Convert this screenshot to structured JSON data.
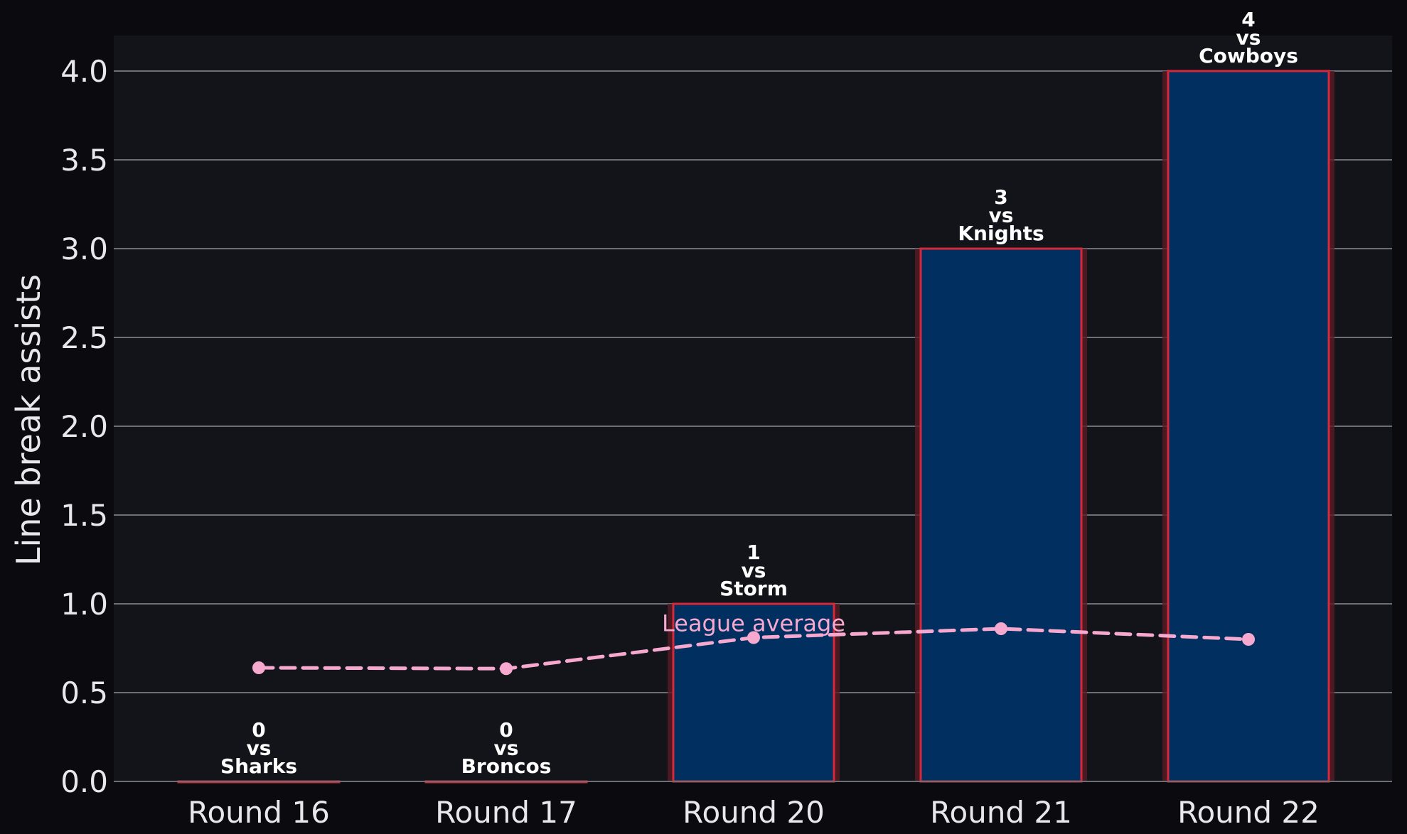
{
  "chart_data": {
    "type": "bar",
    "title": "",
    "xlabel": "",
    "ylabel": "Line break assists",
    "ylim": [
      0,
      4.2
    ],
    "yticks": [
      "0.0",
      "0.5",
      "1.0",
      "1.5",
      "2.0",
      "2.5",
      "3.0",
      "3.5",
      "4.0"
    ],
    "grid": "horizontal",
    "categories": [
      "Round 16",
      "Round 17",
      "Round 20",
      "Round 21",
      "Round 22"
    ],
    "opponents": [
      "Sharks",
      "Broncos",
      "Storm",
      "Knights",
      "Cowboys"
    ],
    "vs_text": "vs",
    "series": [
      {
        "type": "bar",
        "values": [
          0,
          0,
          1,
          3,
          4
        ],
        "value_labels": [
          "0",
          "0",
          "1",
          "3",
          "4"
        ]
      },
      {
        "name": "League average",
        "type": "line",
        "style": "dashed",
        "values": [
          0.64,
          0.635,
          0.81,
          0.86,
          0.8
        ]
      }
    ],
    "colors": {
      "background": "#0b0b0f",
      "plot_background": "#13131a",
      "bar_fill": "#002f60",
      "bar_edge": "#d6283a",
      "bar_glow": "#5a1b24",
      "grid": "#6e6e76",
      "average_line": "#f7a8cf",
      "text": "#e8e8ec"
    }
  }
}
